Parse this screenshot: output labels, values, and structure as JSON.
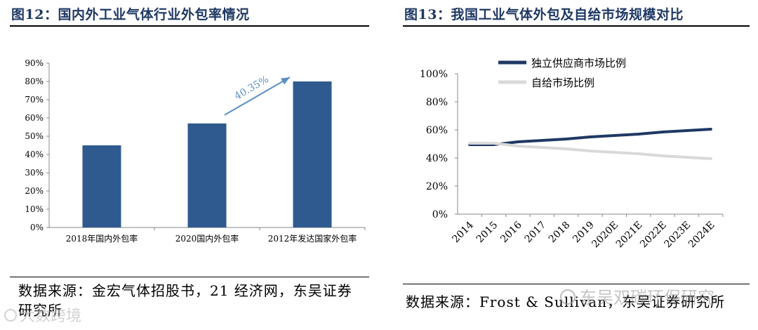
{
  "left": {
    "title": "图12：国内外工业气体行业外包率情况",
    "source": "数据来源：金宏气体招股书，21经济网，东吴证券研究所",
    "source_line1": "数据来源：金宏气体招股书，21 经济网，东吴证券",
    "source_line2": "研究所",
    "annotation": "40.35%"
  },
  "right": {
    "title": "图13：我国工业气体外包及自给市场规模对比",
    "source": "数据来源：Frost & Sullivan，东吴证券研究所",
    "legend": [
      "独立供应商市场比例",
      "自给市场比例"
    ]
  },
  "watermarks": {
    "right": "东吴双碳环保研究",
    "left": "大数跨境"
  },
  "colors": {
    "title": "#1f3864",
    "bar": "#2f5a8f",
    "arrow": "#5b8ec6",
    "line_dark": "#1f3864",
    "line_light": "#d9d9d9"
  },
  "chart_data": [
    {
      "type": "bar",
      "categories": [
        "2018年国内外包率",
        "2020国内外包率",
        "2012年发达国家外包率"
      ],
      "values": [
        45,
        57,
        80
      ],
      "yticks": [
        "0%",
        "10%",
        "20%",
        "30%",
        "40%",
        "50%",
        "60%",
        "70%",
        "80%",
        "90%"
      ],
      "ylim": [
        0,
        90
      ],
      "unit": "%",
      "annotation": {
        "text": "40.35%",
        "from": "2020国内外包率",
        "to": "2012年发达国家外包率"
      }
    },
    {
      "type": "line",
      "x": [
        "2014",
        "2015",
        "2016",
        "2017",
        "2018",
        "2019",
        "2020E",
        "2021E",
        "2022E",
        "2023E",
        "2024E"
      ],
      "series": [
        {
          "name": "独立供应商市场比例",
          "values": [
            49.5,
            49.5,
            51.5,
            52.5,
            53.5,
            55,
            56,
            57,
            58.5,
            59.5,
            60.5
          ]
        },
        {
          "name": "自给市场比例",
          "values": [
            50.5,
            50.5,
            48.5,
            47.5,
            46.5,
            45,
            44,
            43,
            41.5,
            40.5,
            39.5
          ]
        }
      ],
      "yticks": [
        "0%",
        "20%",
        "40%",
        "60%",
        "80%",
        "100%"
      ],
      "ylim": [
        0,
        100
      ],
      "legend_position": "top"
    }
  ]
}
